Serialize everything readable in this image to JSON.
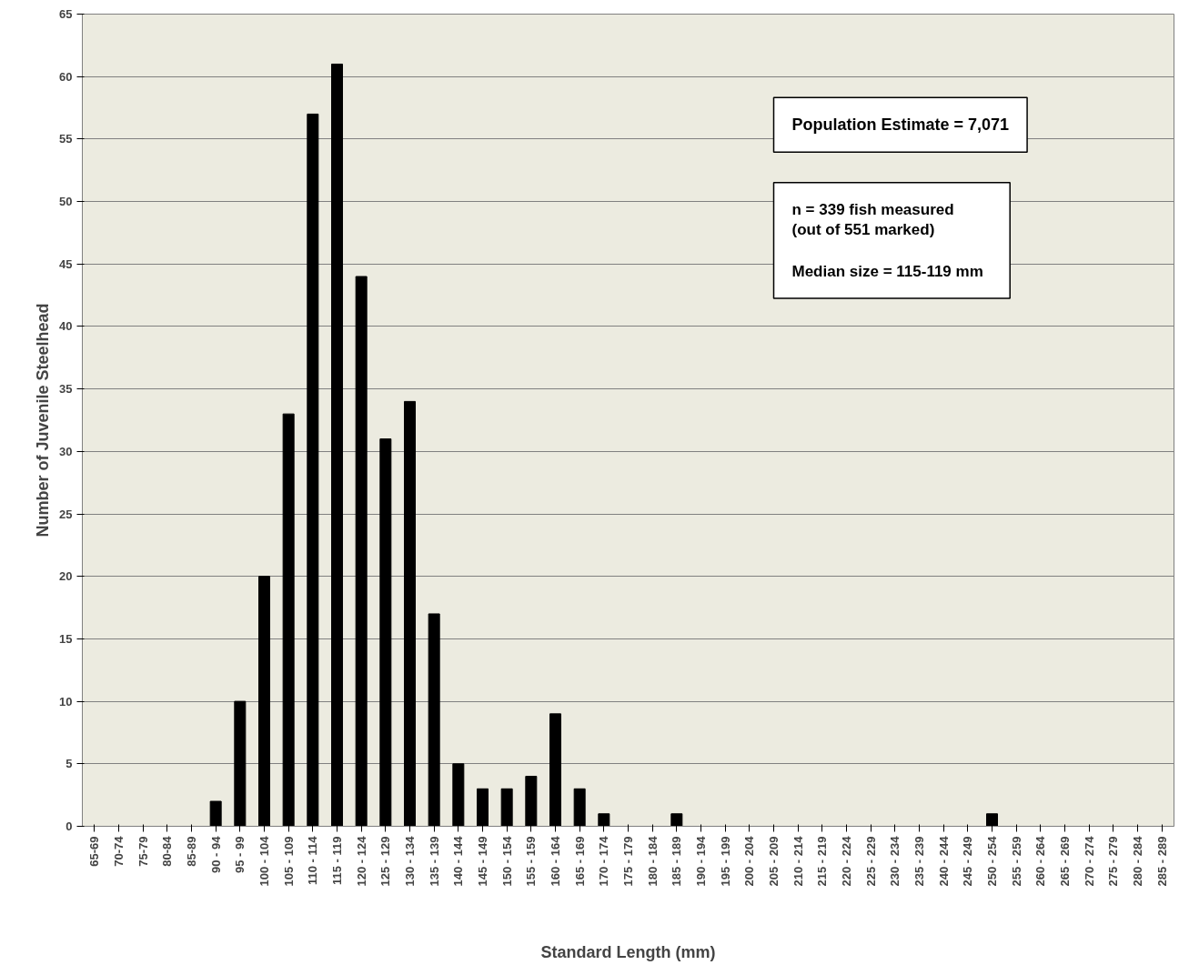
{
  "chart_data": {
    "type": "bar",
    "xlabel": "Standard Length (mm)",
    "ylabel": "Number of Juvenile Steelhead",
    "categories": [
      "65-69",
      "70-74",
      "75-79",
      "80-84",
      "85-89",
      "90 - 94",
      "95 - 99",
      "100 - 104",
      "105 - 109",
      "110 - 114",
      "115 - 119",
      "120 - 124",
      "125 - 129",
      "130 - 134",
      "135 - 139",
      "140 - 144",
      "145 - 149",
      "150 - 154",
      "155 - 159",
      "160 - 164",
      "165 - 169",
      "170 - 174",
      "175 - 179",
      "180 - 184",
      "185 - 189",
      "190 - 194",
      "195 - 199",
      "200 - 204",
      "205 - 209",
      "210 - 214",
      "215 - 219",
      "220 - 224",
      "225 - 229",
      "230 - 234",
      "235 - 239",
      "240 - 244",
      "245 - 249",
      "250 - 254",
      "255 - 259",
      "260 - 264",
      "265 - 269",
      "270 - 274",
      "275 - 279",
      "280 - 284",
      "285 - 289"
    ],
    "values": [
      0,
      0,
      0,
      0,
      0,
      2,
      10,
      20,
      33,
      57,
      61,
      44,
      31,
      34,
      17,
      5,
      3,
      3,
      4,
      9,
      3,
      1,
      0,
      0,
      1,
      0,
      0,
      0,
      0,
      0,
      0,
      0,
      0,
      0,
      0,
      0,
      0,
      1,
      0,
      0,
      0,
      0,
      0,
      0,
      0
    ],
    "color": "#000000",
    "ylim": [
      0,
      65
    ],
    "yticks": [
      0,
      5,
      10,
      15,
      20,
      25,
      30,
      35,
      40,
      45,
      50,
      55,
      60,
      65
    ],
    "grid": "y",
    "annotations": [
      "Population Estimate = 7,071",
      "n = 339 fish measured\n      (out of 551 marked)\n\n Median size =  115-119 mm"
    ]
  }
}
